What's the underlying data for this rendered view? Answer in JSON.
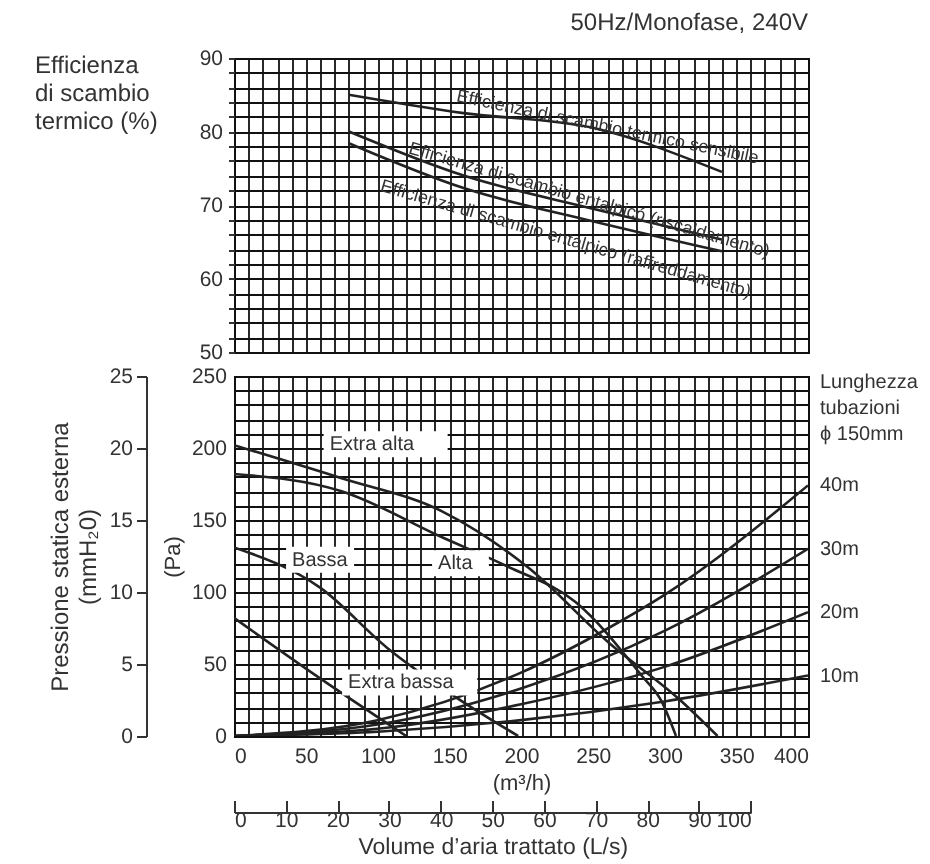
{
  "chart_data": [
    {
      "type": "line",
      "title": "50Hz/Monofase, 240V",
      "ylabel": "Efficienza di scambio termico (%)",
      "xlim": [
        0,
        400
      ],
      "xticks": [
        0,
        {
          "value": 10,
          "label": null
        },
        {
          "value": 20,
          "label": null
        },
        {
          "value": 30,
          "label": null
        },
        {
          "value": 40,
          "label": null
        },
        50,
        {
          "value": 60,
          "label": null
        },
        {
          "value": 70,
          "label": null
        },
        {
          "value": 80,
          "label": null
        },
        {
          "value": 90,
          "label": null
        },
        100,
        {
          "value": 110,
          "label": null
        },
        {
          "value": 120,
          "label": null
        },
        {
          "value": 130,
          "label": null
        },
        {
          "value": 140,
          "label": null
        },
        150,
        {
          "value": 160,
          "label": null
        },
        {
          "value": 170,
          "label": null
        },
        {
          "value": 180,
          "label": null
        },
        {
          "value": 190,
          "label": null
        },
        200,
        {
          "value": 210,
          "label": null
        },
        {
          "value": 220,
          "label": null
        },
        {
          "value": 230,
          "label": null
        },
        {
          "value": 240,
          "label": null
        },
        250,
        {
          "value": 260,
          "label": null
        },
        {
          "value": 270,
          "label": null
        },
        {
          "value": 280,
          "label": null
        },
        {
          "value": 290,
          "label": null
        },
        300,
        {
          "value": 310,
          "label": null
        },
        {
          "value": 320,
          "label": null
        },
        {
          "value": 330,
          "label": null
        },
        {
          "value": 340,
          "label": null
        },
        350,
        {
          "value": 360,
          "label": null
        },
        {
          "value": 370,
          "label": null
        },
        {
          "value": 380,
          "label": null
        },
        {
          "value": 390,
          "label": null
        },
        400
      ],
      "ylim": [
        50,
        90
      ],
      "yticks": [
        50,
        {
          "value": 52,
          "label": null
        },
        {
          "value": 54,
          "label": null
        },
        {
          "value": 56,
          "label": null
        },
        {
          "value": 58,
          "label": null
        },
        60,
        {
          "value": 62,
          "label": null
        },
        {
          "value": 64,
          "label": null
        },
        {
          "value": 66,
          "label": null
        },
        {
          "value": 68,
          "label": null
        },
        70,
        {
          "value": 72,
          "label": null
        },
        {
          "value": 74,
          "label": null
        },
        {
          "value": 76,
          "label": null
        },
        {
          "value": 78,
          "label": null
        },
        80,
        {
          "value": 82,
          "label": null
        },
        {
          "value": 84,
          "label": null
        },
        {
          "value": 86,
          "label": null
        },
        {
          "value": 88,
          "label": null
        },
        90
      ],
      "grid": true,
      "tick_labels": "y",
      "series": [
        {
          "name": "Efficienza di scambio termico sensibile",
          "color": "#222222",
          "x": [
            80,
            160,
            250,
            340
          ],
          "values": [
            85,
            82.5,
            80.5,
            74.5
          ]
        },
        {
          "name": "Efficienza di scambio entalpicó (riscaldamento)",
          "color": "#222222",
          "x": [
            80,
            160,
            250,
            340
          ],
          "values": [
            80,
            74,
            69.5,
            65.3
          ]
        },
        {
          "name": "Efficienza di scambio entalpico (raffreddamento)",
          "color": "#222222",
          "x": [
            80,
            160,
            250,
            340
          ],
          "values": [
            78.4,
            72.3,
            67.8,
            63.7
          ]
        }
      ]
    },
    {
      "type": "line",
      "xlabel": "(m³/h)",
      "ylabel": "(Pa)",
      "y2label": "Pressione statica esterna (mmH₂0)",
      "x2label": "Volume d’aria trattato  (L/s)",
      "annotations": [
        "Lunghezza tubazioni ϕ 150mm"
      ],
      "xlim": [
        0,
        400
      ],
      "xticks": [
        0,
        {
          "value": 10,
          "label": null
        },
        {
          "value": 20,
          "label": null
        },
        {
          "value": 30,
          "label": null
        },
        {
          "value": 40,
          "label": null
        },
        50,
        {
          "value": 60,
          "label": null
        },
        {
          "value": 70,
          "label": null
        },
        {
          "value": 80,
          "label": null
        },
        {
          "value": 90,
          "label": null
        },
        100,
        {
          "value": 110,
          "label": null
        },
        {
          "value": 120,
          "label": null
        },
        {
          "value": 130,
          "label": null
        },
        {
          "value": 140,
          "label": null
        },
        150,
        {
          "value": 160,
          "label": null
        },
        {
          "value": 170,
          "label": null
        },
        {
          "value": 180,
          "label": null
        },
        {
          "value": 190,
          "label": null
        },
        200,
        {
          "value": 210,
          "label": null
        },
        {
          "value": 220,
          "label": null
        },
        {
          "value": 230,
          "label": null
        },
        {
          "value": 240,
          "label": null
        },
        250,
        {
          "value": 260,
          "label": null
        },
        {
          "value": 270,
          "label": null
        },
        {
          "value": 280,
          "label": null
        },
        {
          "value": 290,
          "label": null
        },
        300,
        {
          "value": 310,
          "label": null
        },
        {
          "value": 320,
          "label": null
        },
        {
          "value": 330,
          "label": null
        },
        {
          "value": 340,
          "label": null
        },
        350,
        {
          "value": 360,
          "label": null
        },
        {
          "value": 370,
          "label": null
        },
        {
          "value": 380,
          "label": null
        },
        {
          "value": 390,
          "label": null
        },
        400
      ],
      "ylim": [
        0,
        250
      ],
      "yticks": [
        0,
        {
          "value": 10,
          "label": null
        },
        {
          "value": 20,
          "label": null
        },
        {
          "value": 30,
          "label": null
        },
        {
          "value": 40,
          "label": null
        },
        50,
        {
          "value": 60,
          "label": null
        },
        {
          "value": 70,
          "label": null
        },
        {
          "value": 80,
          "label": null
        },
        {
          "value": 90,
          "label": null
        },
        100,
        {
          "value": 110,
          "label": null
        },
        {
          "value": 120,
          "label": null
        },
        {
          "value": 130,
          "label": null
        },
        {
          "value": 140,
          "label": null
        },
        150,
        {
          "value": 160,
          "label": null
        },
        {
          "value": 170,
          "label": null
        },
        {
          "value": 180,
          "label": null
        },
        {
          "value": 190,
          "label": null
        },
        200,
        {
          "value": 210,
          "label": null
        },
        {
          "value": 220,
          "label": null
        },
        {
          "value": 230,
          "label": null
        },
        {
          "value": 240,
          "label": null
        },
        250
      ],
      "y2lim": [
        0,
        25
      ],
      "y2ticks": [
        0,
        5,
        10,
        15,
        20,
        25
      ],
      "x2lim": [
        0,
        100
      ],
      "x2ticks": [
        0,
        10,
        20,
        30,
        40,
        50,
        60,
        70,
        80,
        90,
        100
      ],
      "grid": true,
      "series": [
        {
          "name": "Extra alta",
          "color": "#222222",
          "x": [
            0,
            75,
            145,
            205,
            261,
            312,
            337
          ],
          "values": [
            202,
            179,
            156,
            117,
            65,
            24,
            0
          ]
        },
        {
          "name": "Alta",
          "color": "#222222",
          "x": [
            0,
            75,
            145,
            190,
            238,
            284,
            298,
            308
          ],
          "values": [
            182,
            170,
            138,
            118,
            93,
            42,
            24,
            0
          ]
        },
        {
          "name": "Bassa",
          "color": "#222222",
          "x": [
            0,
            60,
            107,
            150,
            198
          ],
          "values": [
            131,
            103,
            61,
            30,
            0
          ]
        },
        {
          "name": "Extra bassa",
          "color": "#222222",
          "x": [
            0,
            60,
            120
          ],
          "values": [
            82,
            40,
            0
          ]
        },
        {
          "name": "40m",
          "color": "#222222",
          "x": [
            0,
            100,
            200,
            261,
            300,
            400
          ],
          "values": [
            0,
            11,
            44,
            75,
            98,
            174
          ]
        },
        {
          "name": "30m",
          "color": "#222222",
          "x": [
            0,
            100,
            200,
            300,
            400
          ],
          "values": [
            0,
            8,
            33,
            73,
            130
          ]
        },
        {
          "name": "20m",
          "color": "#222222",
          "x": [
            0,
            100,
            200,
            300,
            400
          ],
          "values": [
            0,
            5,
            22,
            48,
            86
          ]
        },
        {
          "name": "10m",
          "color": "#222222",
          "x": [
            0,
            100,
            200,
            300,
            400
          ],
          "values": [
            0,
            3,
            11,
            24,
            42
          ]
        }
      ]
    }
  ]
}
